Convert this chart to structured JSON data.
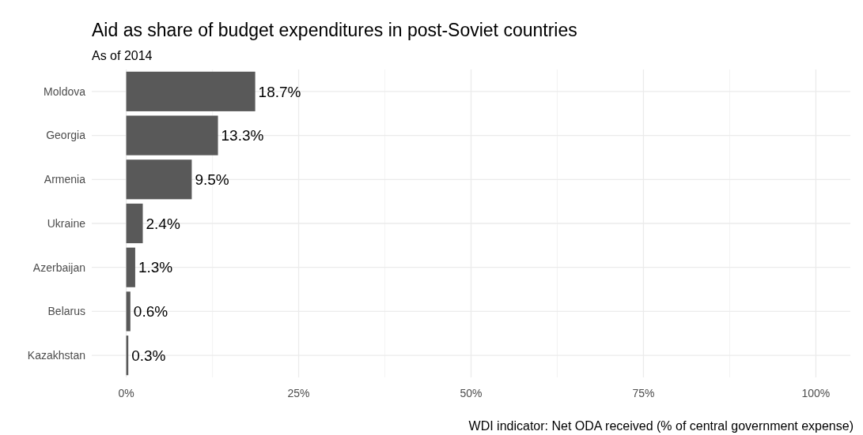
{
  "chart_data": {
    "type": "bar",
    "orientation": "horizontal",
    "title": "Aid as share of budget expenditures in post-Soviet countries",
    "subtitle": "As of 2014",
    "categories": [
      "Moldova",
      "Georgia",
      "Armenia",
      "Ukraine",
      "Azerbaijan",
      "Belarus",
      "Kazakhstan"
    ],
    "values": [
      18.7,
      13.3,
      9.5,
      2.4,
      1.3,
      0.6,
      0.3
    ],
    "value_labels": [
      "18.7%",
      "13.3%",
      "9.5%",
      "2.4%",
      "1.3%",
      "0.6%",
      "0.3%"
    ],
    "color": "#595959",
    "xlim": [
      -5,
      105
    ],
    "xticks": [
      {
        "value": 0,
        "label": "0%"
      },
      {
        "value": 25,
        "label": "25%"
      },
      {
        "value": 50,
        "label": "50%"
      },
      {
        "value": 75,
        "label": "75%"
      },
      {
        "value": 100,
        "label": "100%"
      }
    ],
    "grid": true,
    "annotations": [
      "WDI indicator: Net ODA received (% of central government expense)"
    ]
  }
}
